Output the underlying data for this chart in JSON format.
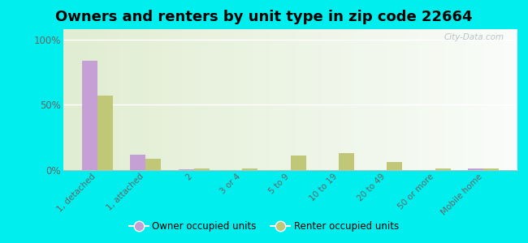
{
  "title": "Owners and renters by unit type in zip code 22664",
  "categories": [
    "1, detached",
    "1, attached",
    "2",
    "3 or 4",
    "5 to 9",
    "10 to 19",
    "20 to 49",
    "50 or more",
    "Mobile home"
  ],
  "owner_values": [
    84,
    12,
    0.5,
    0.3,
    0.3,
    0.3,
    0.3,
    0.3,
    1.2
  ],
  "renter_values": [
    57,
    9,
    1.0,
    1.5,
    11,
    13,
    6,
    1.5,
    1.5
  ],
  "owner_color": "#c4a0d4",
  "renter_color": "#c0c878",
  "outer_bg": "#00eeee",
  "yticks": [
    0,
    50,
    100
  ],
  "ytick_labels": [
    "0%",
    "50%",
    "100%"
  ],
  "title_fontsize": 13,
  "watermark": "City-Data.com"
}
